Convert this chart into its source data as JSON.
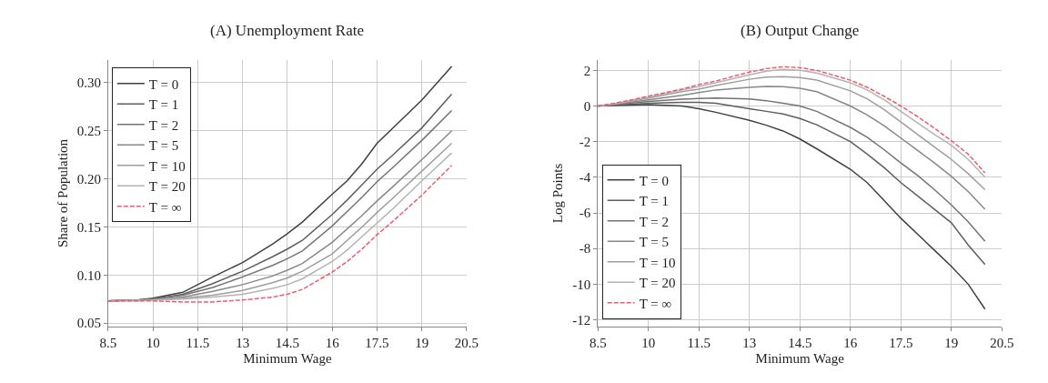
{
  "chart_data": [
    {
      "type": "line",
      "title": "(A) Unemployment Rate",
      "xlabel": "Minimum Wage",
      "ylabel": "Share of Population",
      "x": [
        8.5,
        9.5,
        10,
        11,
        12,
        13,
        14,
        14.5,
        15,
        16,
        16.5,
        17,
        17.5,
        18,
        19,
        20
      ],
      "xlim": [
        8.5,
        20.5
      ],
      "xticks": [
        8.5,
        10,
        11.5,
        13,
        14.5,
        16,
        17.5,
        19,
        20.5
      ],
      "ylim": [
        0.046,
        0.324
      ],
      "yticks": [
        0.05,
        {
          "value": 0.1,
          "label": "0.10"
        },
        0.15,
        {
          "value": 0.2,
          "label": "0.20"
        },
        0.25,
        {
          "value": 0.3,
          "label": "0.30"
        }
      ],
      "grid": true,
      "legend": "top left",
      "marker": "none",
      "series": [
        {
          "name": "T = 0",
          "color": "#404040",
          "line_style": "solid",
          "values": [
            0.073,
            0.074,
            0.076,
            0.082,
            0.098,
            0.113,
            0.132,
            0.143,
            0.155,
            0.184,
            0.198,
            0.216,
            0.237,
            0.252,
            0.282,
            0.317
          ]
        },
        {
          "name": "T = 1",
          "color": "#5e5e5e",
          "line_style": "solid",
          "values": [
            0.073,
            0.074,
            0.075,
            0.08,
            0.091,
            0.104,
            0.119,
            0.127,
            0.136,
            0.163,
            0.178,
            0.194,
            0.21,
            0.224,
            0.253,
            0.288
          ]
        },
        {
          "name": "T = 2",
          "color": "#747474",
          "line_style": "solid",
          "values": [
            0.073,
            0.074,
            0.075,
            0.079,
            0.087,
            0.098,
            0.11,
            0.117,
            0.125,
            0.151,
            0.166,
            0.181,
            0.197,
            0.211,
            0.24,
            0.271
          ]
        },
        {
          "name": "T = 5",
          "color": "#888888",
          "line_style": "solid",
          "values": [
            0.073,
            0.074,
            0.074,
            0.077,
            0.083,
            0.09,
            0.099,
            0.105,
            0.112,
            0.134,
            0.148,
            0.162,
            0.177,
            0.191,
            0.22,
            0.25
          ]
        },
        {
          "name": "T = 10",
          "color": "#9e9e9e",
          "line_style": "solid",
          "values": [
            0.073,
            0.074,
            0.074,
            0.076,
            0.079,
            0.084,
            0.092,
            0.097,
            0.104,
            0.122,
            0.136,
            0.15,
            0.165,
            0.179,
            0.208,
            0.237
          ]
        },
        {
          "name": "T = 20",
          "color": "#b4b4b4",
          "line_style": "solid",
          "values": [
            0.073,
            0.073,
            0.074,
            0.075,
            0.077,
            0.08,
            0.086,
            0.09,
            0.096,
            0.114,
            0.126,
            0.14,
            0.154,
            0.168,
            0.198,
            0.227
          ]
        },
        {
          "name": "T = ∞",
          "color": "#ef5b6e",
          "line_style": "dashed",
          "values": [
            0.073,
            0.073,
            0.073,
            0.072,
            0.072,
            0.074,
            0.077,
            0.08,
            0.085,
            0.103,
            0.114,
            0.127,
            0.142,
            0.155,
            0.183,
            0.214
          ]
        }
      ]
    },
    {
      "type": "line",
      "title": "(B) Output Change",
      "xlabel": "Minimum Wage",
      "ylabel": "Log Points",
      "x": [
        8.5,
        9,
        10,
        11,
        11.5,
        12,
        13,
        13.5,
        14,
        14.5,
        15,
        16,
        16.5,
        17,
        17.5,
        18,
        18.5,
        19,
        19.5,
        20
      ],
      "xlim": [
        8.5,
        20.5
      ],
      "xticks": [
        8.5,
        10,
        11.5,
        13,
        14.5,
        16,
        17.5,
        19,
        20.5
      ],
      "ylim": [
        -12.4,
        2.6
      ],
      "yticks": [
        -12,
        -10,
        -8,
        -6,
        -4,
        -2,
        0,
        2
      ],
      "grid": true,
      "legend": "bottom left",
      "marker": "none",
      "series": [
        {
          "name": "T = 0",
          "color": "#404040",
          "line_style": "solid",
          "values": [
            0,
            0.03,
            0.08,
            0.0,
            -0.15,
            -0.35,
            -0.8,
            -1.08,
            -1.4,
            -1.85,
            -2.4,
            -3.55,
            -4.3,
            -5.3,
            -6.3,
            -7.2,
            -8.1,
            -9.0,
            -10.0,
            -11.4
          ]
        },
        {
          "name": "T = 1",
          "color": "#5e5e5e",
          "line_style": "solid",
          "values": [
            0,
            0.05,
            0.15,
            0.2,
            0.2,
            0.15,
            -0.15,
            -0.3,
            -0.45,
            -0.7,
            -1.05,
            -2.0,
            -2.7,
            -3.45,
            -4.3,
            -5.05,
            -5.8,
            -6.55,
            -7.8,
            -8.9
          ]
        },
        {
          "name": "T = 2",
          "color": "#747474",
          "line_style": "solid",
          "values": [
            0,
            0.08,
            0.25,
            0.38,
            0.42,
            0.45,
            0.4,
            0.3,
            0.15,
            0.0,
            -0.3,
            -1.2,
            -1.75,
            -2.45,
            -3.2,
            -3.9,
            -4.7,
            -5.55,
            -6.5,
            -7.6
          ]
        },
        {
          "name": "T = 5",
          "color": "#888888",
          "line_style": "solid",
          "values": [
            0,
            0.1,
            0.35,
            0.6,
            0.75,
            0.9,
            1.05,
            1.1,
            1.08,
            1.0,
            0.8,
            0.0,
            -0.5,
            -1.1,
            -1.8,
            -2.5,
            -3.2,
            -3.95,
            -4.8,
            -5.8
          ]
        },
        {
          "name": "T = 10",
          "color": "#9e9e9e",
          "line_style": "solid",
          "values": [
            0,
            0.12,
            0.45,
            0.8,
            0.95,
            1.15,
            1.5,
            1.62,
            1.65,
            1.6,
            1.45,
            0.85,
            0.4,
            -0.2,
            -0.9,
            -1.6,
            -2.3,
            -3.0,
            -3.8,
            -4.7
          ]
        },
        {
          "name": "T = 20",
          "color": "#b4b4b4",
          "line_style": "solid",
          "values": [
            0,
            0.13,
            0.5,
            0.9,
            1.1,
            1.3,
            1.75,
            1.95,
            2.05,
            2.0,
            1.85,
            1.3,
            0.9,
            0.35,
            -0.3,
            -0.95,
            -1.6,
            -2.2,
            -3.0,
            -4.0
          ]
        },
        {
          "name": "T = ∞",
          "color": "#ef5b6e",
          "line_style": "dashed",
          "values": [
            0,
            0.15,
            0.55,
            0.95,
            1.2,
            1.4,
            1.9,
            2.1,
            2.2,
            2.15,
            2.0,
            1.45,
            1.05,
            0.55,
            0.0,
            -0.6,
            -1.25,
            -1.95,
            -2.7,
            -3.75
          ]
        }
      ]
    }
  ]
}
